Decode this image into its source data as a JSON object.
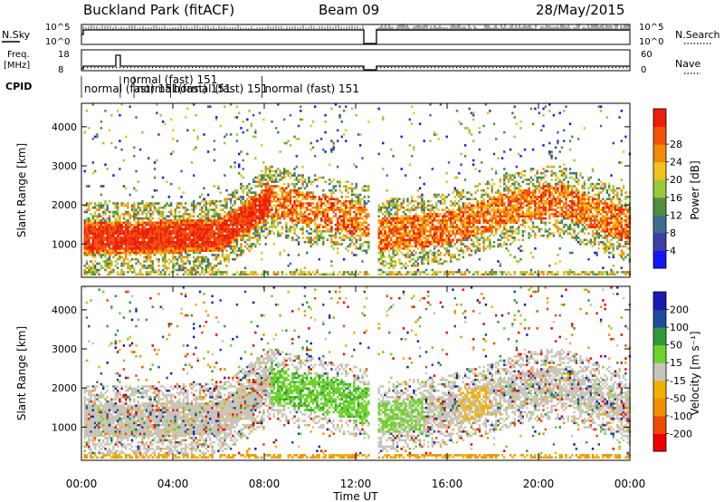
{
  "header": {
    "station": "Buckland Park (fitACF)",
    "beam": "Beam 09",
    "date": "28/May/2015"
  },
  "top_panels": {
    "nsky_label": "N.Sky",
    "nsky_ticks": [
      "10^5",
      "10^0"
    ],
    "nsearch_label": "N.Search",
    "nsearch_ticks": [
      "10^5",
      "10^0"
    ],
    "freq_label_line1": "Freq.",
    "freq_label_line2": "[MHz]",
    "freq_ticks": [
      "18",
      "8"
    ],
    "nave_label": "Nave",
    "nave_ticks": [
      "60",
      "0"
    ],
    "cpid_label": "CPID",
    "cpid_entries": [
      {
        "text": "normal (fast) 151",
        "hour": 0.0
      },
      {
        "text": "normal (fast) 151",
        "hour": 1.7
      },
      {
        "text": "normal (fast) 151",
        "hour": 2.3
      },
      {
        "text": "normal (fast) 151",
        "hour": 3.9
      },
      {
        "text": "normal (fast) 151",
        "hour": 7.9
      }
    ]
  },
  "colors": {
    "power": [
      "#1515ff",
      "#3b3fa8",
      "#3d6e8c",
      "#4f8f3f",
      "#9ac83a",
      "#f2c21b",
      "#f28a0a",
      "#f0520a",
      "#ee1c08"
    ],
    "velocity": [
      "#ee0000",
      "#f04a00",
      "#f09000",
      "#f0b000",
      "#c8c4b8",
      "#6fd22a",
      "#2e9a3a",
      "#1e4aa0",
      "#1a1ab0"
    ]
  },
  "chart_data": [
    {
      "type": "heatmap",
      "name": "power",
      "ylabel": "Slant Range [km]",
      "yticks": [
        1000,
        2000,
        3000,
        4000
      ],
      "ylim": [
        150,
        4600
      ],
      "xlim": [
        0,
        24
      ],
      "data_gap_hours": [
        12.6,
        12.9
      ],
      "colorbar_label": "Power [dB]",
      "colorbar_ticks": [
        "4",
        "8",
        "12",
        "16",
        "20",
        "24",
        "28"
      ]
    },
    {
      "type": "heatmap",
      "name": "velocity",
      "ylabel": "Slant Range [km]",
      "yticks": [
        1000,
        2000,
        3000,
        4000
      ],
      "ylim": [
        150,
        4600
      ],
      "xlim": [
        0,
        24
      ],
      "data_gap_hours": [
        12.6,
        12.9
      ],
      "colorbar_label": "Velocity [m s⁻¹]",
      "colorbar_ticks": [
        "-200",
        "-100",
        "-50",
        "-15",
        "15",
        "50",
        "100",
        "200"
      ]
    }
  ],
  "xaxis": {
    "label": "Time UT",
    "ticks": [
      "00:00",
      "04:00",
      "08:00",
      "12:00",
      "16:00",
      "20:00",
      "00:00"
    ]
  }
}
